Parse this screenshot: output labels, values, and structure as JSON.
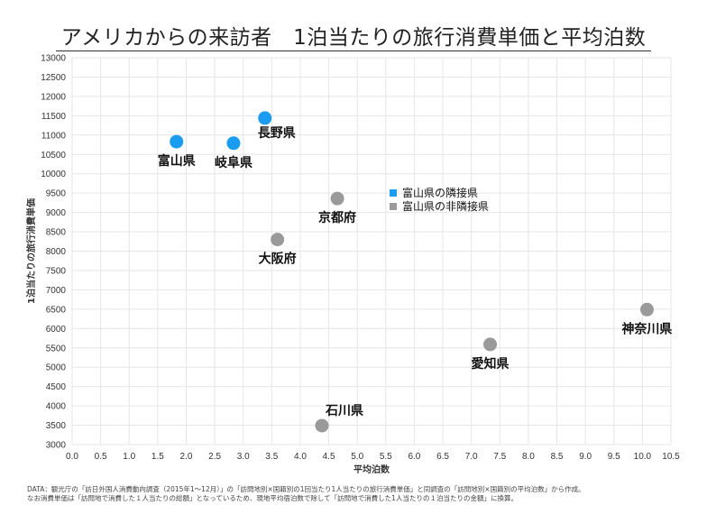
{
  "chart_data": {
    "type": "scatter",
    "title": "アメリカからの来訪者　1泊当たりの旅行消費単価と平均泊数",
    "xlabel": "平均泊数",
    "ylabel": "1泊当たりの旅行消費単価",
    "xlim": [
      0,
      10.5
    ],
    "ylim": [
      3000,
      13000
    ],
    "xticks": [
      0,
      0.5,
      1,
      1.5,
      2,
      2.5,
      3,
      3.5,
      4,
      4.5,
      5,
      5.5,
      6,
      6.5,
      7,
      7.5,
      8,
      8.5,
      9,
      9.5,
      10,
      10.5
    ],
    "xtick_labels": [
      "0.0",
      "0.5",
      "1.0",
      "1.5",
      "2.0",
      "2.5",
      "3.0",
      "3.5",
      "4.0",
      "4.5",
      "5.0",
      "5.5",
      "6.0",
      "6.5",
      "7.0",
      "7.5",
      "8.0",
      "8.5",
      "9.0",
      "9.5",
      "10.0",
      "10.5"
    ],
    "yticks": [
      3000,
      3500,
      4000,
      4500,
      5000,
      5500,
      6000,
      6500,
      7000,
      7500,
      8000,
      8500,
      9000,
      9500,
      10000,
      10500,
      11000,
      11500,
      12000,
      12500,
      13000
    ],
    "grid": true,
    "legend_position": "center",
    "series": [
      {
        "name": "富山県の隣接県",
        "color": "#1a9cf0",
        "points": [
          {
            "label": "富山県",
            "x": 1.83,
            "y": 10830,
            "label_pos": "below"
          },
          {
            "label": "岐阜県",
            "x": 2.83,
            "y": 10790,
            "label_pos": "below"
          },
          {
            "label": "長野県",
            "x": 3.38,
            "y": 11440,
            "label_pos": "below-right"
          }
        ]
      },
      {
        "name": "富山県の非隣接県",
        "color": "#9a9a9a",
        "points": [
          {
            "label": "京都府",
            "x": 4.65,
            "y": 9360,
            "label_pos": "below"
          },
          {
            "label": "大阪府",
            "x": 3.6,
            "y": 8300,
            "label_pos": "below"
          },
          {
            "label": "神奈川県",
            "x": 10.08,
            "y": 6490,
            "label_pos": "below"
          },
          {
            "label": "愛知県",
            "x": 7.33,
            "y": 5590,
            "label_pos": "below"
          },
          {
            "label": "石川県",
            "x": 4.38,
            "y": 3490,
            "label_pos": "above-right"
          }
        ]
      }
    ]
  },
  "source_line1": "DATA：観光庁の「訪日外国人消費動向調査（2015年1〜12月）」の「訪問地別×国籍別の1回当たり1人当たりの旅行消費単価」と同調査の「訪問地別×国籍別の平均泊数」から作成。",
  "source_line2": "なお消費単価は「訪問地で消費した１人当たりの総額」となっているため、現地平均宿泊数で除して「訪問地で消費した1人当たりの１泊当たりの金額」に換算。"
}
